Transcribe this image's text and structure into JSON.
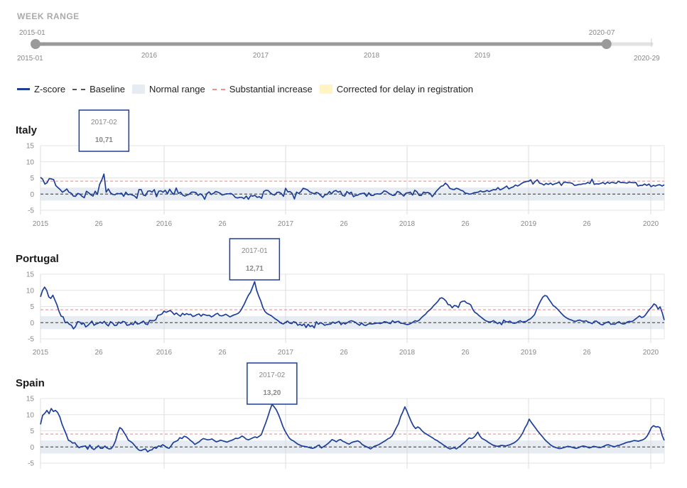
{
  "week_range": {
    "title": "WEEK RANGE",
    "start_label": "2015-01",
    "end_label": "2020-07",
    "min_label": "2015-01",
    "max_label": "2020-29",
    "year_labels": [
      "2016",
      "2017",
      "2018",
      "2019"
    ],
    "selected_start_fraction": 0.0,
    "selected_end_fraction": 0.927
  },
  "legend": {
    "zscore": "Z-score",
    "baseline": "Baseline",
    "normal_range": "Normal range",
    "substantial_increase": "Substantial increase",
    "corrected": "Corrected for delay in registration"
  },
  "colors": {
    "zscore_line": "#1d3f9a",
    "baseline": "#555555",
    "normal_range": "#e6ecf2",
    "substantial_increase": "#f09090",
    "corrected": "#fff4c2",
    "slider_track": "#999999"
  },
  "chart_data": [
    {
      "type": "line",
      "title": "Italy",
      "ylim": [
        -5,
        15
      ],
      "yticks": [
        15,
        10,
        5,
        0,
        -5
      ],
      "xlim": [
        "2015-01",
        "2020-13"
      ],
      "xticks": [
        "2015",
        "26",
        "2016",
        "26",
        "2017",
        "26",
        "2018",
        "26",
        "2019",
        "26",
        "2020"
      ],
      "baseline": 0,
      "normal_range": [
        -2,
        2
      ],
      "substantial_increase_threshold": 4,
      "tooltip": {
        "week": "2017-02",
        "value": "10,71"
      },
      "series": [
        {
          "values": [
            5.2,
            4.6,
            3.1,
            3.5,
            4.8,
            4.7,
            4.5,
            2.6,
            2.0,
            1.4,
            0.6,
            1.0,
            1.6,
            0.6,
            0.3,
            -0.6,
            -0.7,
            0.2,
            0.0,
            -0.7,
            -1.1,
            0.9,
            0.4,
            -0.2,
            -0.6,
            0.9,
            -0.1,
            3.0,
            4.4,
            6.2,
            0.6,
            1.6,
            0.4,
            -0.1,
            -0.2,
            0.2,
            0.1,
            0.3,
            -0.7,
            0.6,
            -0.2,
            0.0,
            -0.3,
            -0.6,
            -1.3,
            1.4,
            1.4,
            -0.3,
            -0.5,
            0.9,
            1.0,
            0.6,
            1.4,
            -0.8,
            0.9,
            1.0,
            0.6,
            1.2,
            0.1,
            1.5,
            0.5,
            -0.1,
            1.9,
            0.2,
            0.6,
            -0.3,
            -0.6,
            -0.3,
            0.0,
            0.6,
            0.6,
            0.5,
            -0.4,
            0.1,
            -0.4,
            -1.6,
            0.1,
            0.7,
            -0.1,
            0.2,
            0.8,
            0.6,
            0.3,
            -0.3,
            -0.1,
            0.1,
            0.1,
            0.2,
            -0.2,
            -1.0,
            -1.2,
            -1.0,
            -1.0,
            -1.4,
            -0.6,
            -1.6,
            -0.5,
            -0.6,
            -0.4,
            -1.0,
            -0.8,
            -1.3,
            0.8,
            1.2,
            1.1,
            0.4,
            -0.1,
            -0.3,
            0.5,
            0.6,
            0.2,
            -0.7,
            1.8,
            0.7,
            0.8,
            0.2,
            -1.5,
            0.6,
            0.2,
            0.8,
            1.8,
            1.6,
            1.3,
            0.7,
            0.4,
            0.1,
            0.5,
            0.3,
            -0.4,
            -1.0,
            -0.2,
            -0.1,
            0.8,
            0.1,
            0.9,
            1.1,
            0.6,
            0.9,
            -0.4,
            -0.6,
            0.8,
            0.2,
            0.6,
            -0.8,
            -0.4,
            -0.3,
            0.1,
            0.2,
            0.3,
            -0.7,
            0.4,
            -0.4,
            -0.4,
            0.0,
            0.1,
            0.0,
            0.3,
            1.0,
            0.8,
            0.3,
            -0.1,
            -0.4,
            -0.3,
            0.8,
            0.6,
            0.0,
            -0.6,
            0.3,
            0.4,
            0.6,
            -0.3,
            1.2,
            0.7,
            -0.4,
            -0.4,
            0.6,
            0.4,
            0.5,
            0.2,
            -0.8,
            0.1,
            1.0,
            1.7,
            2.4,
            2.6,
            3.4,
            2.8,
            1.8,
            1.5,
            1.4,
            1.8,
            1.6,
            1.2,
            1.0,
            0.3,
            0.2,
            0.0,
            0.1,
            0.4,
            0.5,
            0.6,
            1.0,
            0.7,
            0.8,
            1.1,
            0.8,
            1.1,
            1.4,
            1.3,
            2.0,
            1.3,
            1.6,
            2.0,
            2.5,
            1.6,
            2.0,
            2.2,
            2.8,
            2.5,
            2.9,
            3.4,
            3.7,
            3.9,
            4.0,
            4.4,
            3.1,
            3.9,
            4.4,
            3.4,
            3.2,
            2.8,
            3.3,
            3.0,
            3.4,
            2.9,
            3.2,
            3.4,
            3.7,
            2.7,
            3.6,
            3.7,
            3.5,
            3.5,
            3.3,
            2.7,
            2.8,
            3.0,
            3.0,
            3.2,
            3.2,
            3.6,
            3.3,
            4.6,
            3.0,
            3.2,
            3.1,
            3.3,
            3.6,
            3.1,
            3.7,
            3.3,
            3.7,
            3.5,
            3.3,
            4.0,
            3.6,
            3.6,
            3.5,
            3.4,
            3.7,
            3.6,
            3.5,
            3.6,
            2.5,
            2.7,
            2.7,
            3.1,
            2.7,
            3.1,
            2.3,
            2.7,
            2.5,
            2.8,
            2.9,
            2.5,
            2.9
          ]
        }
      ]
    },
    {
      "type": "line",
      "title": "Portugal",
      "ylim": [
        -5,
        15
      ],
      "yticks": [
        15,
        10,
        5,
        0,
        -5
      ],
      "xlim": [
        "2015-01",
        "2020-13"
      ],
      "xticks": [
        "2015",
        "26",
        "2016",
        "26",
        "2017",
        "26",
        "2018",
        "26",
        "2019",
        "26",
        "2020"
      ],
      "baseline": 0,
      "normal_range": [
        -2,
        2
      ],
      "substantial_increase_threshold": 4,
      "tooltip": {
        "week": "2017-01",
        "value": "12,71"
      },
      "series": [
        {
          "values": [
            8.0,
            10.0,
            11.0,
            10.0,
            8.0,
            7.5,
            8.5,
            7.0,
            5.5,
            3.5,
            2.0,
            1.8,
            0.0,
            0.2,
            -0.5,
            -0.8,
            -1.9,
            -1.2,
            0.3,
            0.2,
            -0.5,
            -0.1,
            -1.3,
            -0.9,
            -0.2,
            0.5,
            -0.8,
            -0.4,
            -0.2,
            0.2,
            -0.2,
            0.4,
            -0.5,
            -1.0,
            0.3,
            -0.1,
            -0.9,
            -0.8,
            0.2,
            -0.2,
            0.4,
            0.2,
            -0.8,
            -0.7,
            -0.3,
            -0.6,
            0.4,
            -0.4,
            -0.3,
            0.1,
            0.5,
            -0.4,
            -0.6,
            0.7,
            0.6,
            0.6,
            0.9,
            2.3,
            2.4,
            2.7,
            3.6,
            3.2,
            3.5,
            3.8,
            3.2,
            2.5,
            3.0,
            2.4,
            2.0,
            2.9,
            2.4,
            2.8,
            2.5,
            2.6,
            1.9,
            2.1,
            2.5,
            2.7,
            2.0,
            2.6,
            2.4,
            2.2,
            2.3,
            1.8,
            2.1,
            2.6,
            2.9,
            2.2,
            2.1,
            2.3,
            2.6,
            2.2,
            1.8,
            2.1,
            2.4,
            2.6,
            2.9,
            3.5,
            4.6,
            5.8,
            7.2,
            8.5,
            9.4,
            11.0,
            12.7,
            10.0,
            8.2,
            6.7,
            4.7,
            3.5,
            2.9,
            2.5,
            2.2,
            1.7,
            1.2,
            0.8,
            0.3,
            -0.2,
            -0.4,
            0.1,
            0.5,
            -0.1,
            -0.3,
            0.3,
            0.1,
            -0.8,
            -0.5,
            -0.9,
            -0.4,
            -1.5,
            -0.5,
            -1.2,
            -0.9,
            -1.6,
            0.3,
            -0.5,
            0.0,
            -0.3,
            -0.8,
            -0.6,
            -0.5,
            -0.4,
            0.2,
            -0.2,
            0.1,
            0.4,
            -0.6,
            0.0,
            -0.4,
            0.0,
            0.4,
            0.6,
            0.4,
            0.1,
            -0.4,
            -0.8,
            -0.1,
            -0.7,
            -0.9,
            -0.5,
            -0.3,
            -0.4,
            -0.3,
            -0.2,
            -0.1,
            -0.3,
            -0.1,
            0.3,
            0.2,
            -0.1,
            -0.3,
            0.6,
            0.1,
            0.3,
            0.4,
            -0.2,
            -0.2,
            -0.4,
            -0.6,
            -0.5,
            -0.2,
            0.2,
            0.6,
            0.4,
            0.8,
            1.5,
            2.1,
            2.6,
            3.4,
            3.9,
            4.5,
            5.3,
            5.9,
            6.6,
            7.5,
            7.7,
            7.3,
            6.7,
            5.6,
            5.5,
            4.6,
            5.3,
            5.2,
            4.7,
            6.3,
            6.6,
            6.7,
            6.1,
            5.9,
            5.5,
            4.1,
            3.2,
            2.8,
            2.2,
            1.7,
            1.2,
            0.7,
            0.4,
            0.2,
            0.3,
            0.6,
            0.2,
            -0.3,
            0.1,
            -0.6,
            0.8,
            0.3,
            0.2,
            0.5,
            0.0,
            -0.2,
            -0.1,
            0.3,
            0.6,
            0.2,
            0.3,
            0.4,
            0.9,
            1.2,
            1.8,
            2.5,
            4.1,
            5.5,
            6.8,
            7.9,
            8.4,
            8.2,
            7.2,
            6.3,
            5.3,
            4.9,
            4.3,
            3.6,
            2.9,
            2.2,
            1.7,
            1.3,
            1.0,
            0.8,
            0.5,
            0.4,
            0.7,
            0.8,
            0.5,
            0.4,
            0.6,
            0.2,
            0.0,
            -0.3,
            0.4,
            0.5,
            0.0,
            -0.5,
            -0.7,
            -0.2,
            0.1,
            0.3,
            -0.5,
            -0.4,
            -0.5,
            0.0,
            0.3,
            -0.2,
            -0.4,
            -0.3,
            0.2,
            0.4,
            0.3,
            0.6,
            1.1,
            1.6,
            2.1,
            1.6,
            1.8,
            2.5,
            3.4,
            4.2,
            4.9,
            5.8,
            5.4,
            4.2,
            4.9,
            3.1,
            0.8
          ]
        }
      ]
    },
    {
      "type": "line",
      "title": "Spain",
      "ylim": [
        -5,
        15
      ],
      "yticks": [
        15,
        10,
        5,
        0,
        -5
      ],
      "xlim": [
        "2015-01",
        "2020-13"
      ],
      "baseline": 0,
      "normal_range": [
        -2,
        2
      ],
      "substantial_increase_threshold": 4,
      "tooltip": {
        "week": "2017-02",
        "value": "13,20"
      },
      "series": [
        {
          "values": [
            7.0,
            9.8,
            10.4,
            11.3,
            10.3,
            11.9,
            11.0,
            11.3,
            10.7,
            9.3,
            7.1,
            5.5,
            3.9,
            2.1,
            1.8,
            1.2,
            1.3,
            0.4,
            -0.2,
            0.1,
            0.2,
            0.3,
            -0.7,
            0.6,
            -0.4,
            -0.8,
            -0.2,
            0.4,
            -0.4,
            -0.4,
            0.3,
            -0.3,
            -0.6,
            -0.5,
            0.4,
            1.9,
            4.3,
            6.0,
            5.5,
            4.4,
            3.4,
            2.1,
            1.7,
            1.2,
            0.4,
            -0.4,
            -1.0,
            -1.1,
            -0.8,
            -0.6,
            -1.5,
            -1.0,
            -0.9,
            -0.1,
            -0.4,
            0.3,
            0.2,
            0.7,
            0.3,
            -0.2,
            -0.4,
            0.4,
            1.4,
            1.7,
            2.0,
            2.9,
            2.6,
            3.3,
            3.1,
            2.6,
            2.0,
            1.5,
            0.8,
            1.2,
            1.6,
            2.2,
            2.6,
            2.4,
            2.2,
            2.3,
            2.5,
            2.0,
            1.6,
            1.8,
            2.1,
            1.9,
            1.7,
            1.5,
            1.8,
            2.0,
            2.3,
            2.7,
            2.6,
            2.9,
            3.4,
            3.0,
            2.4,
            2.2,
            2.5,
            2.8,
            3.1,
            2.9,
            3.3,
            3.8,
            5.6,
            7.3,
            9.2,
            11.3,
            13.2,
            12.4,
            11.5,
            10.1,
            8.4,
            6.5,
            5.0,
            3.9,
            2.8,
            2.2,
            1.9,
            1.4,
            0.9,
            0.6,
            0.3,
            0.2,
            0.1,
            -0.1,
            -0.3,
            -0.4,
            -0.2,
            0.3,
            0.6,
            -0.3,
            0.1,
            0.5,
            1.0,
            1.6,
            2.3,
            2.0,
            1.6,
            2.1,
            2.3,
            1.8,
            1.5,
            1.1,
            0.9,
            1.3,
            1.6,
            1.7,
            1.9,
            1.5,
            0.8,
            0.4,
            0.1,
            -0.2,
            -0.6,
            -0.1,
            0.3,
            0.5,
            0.8,
            1.2,
            1.6,
            2.0,
            2.5,
            2.8,
            3.4,
            4.6,
            6.0,
            7.2,
            9.4,
            10.8,
            12.4,
            11.0,
            9.3,
            7.8,
            6.5,
            5.7,
            6.2,
            5.8,
            5.0,
            4.4,
            4.0,
            3.6,
            3.2,
            2.8,
            2.3,
            2.0,
            1.5,
            1.1,
            0.6,
            0.2,
            -0.3,
            -0.6,
            -0.4,
            -0.2,
            -0.6,
            -0.1,
            0.4,
            1.0,
            1.5,
            2.2,
            2.8,
            2.6,
            2.9,
            3.6,
            4.6,
            3.4,
            2.6,
            2.3,
            1.9,
            1.4,
            1.0,
            0.6,
            0.4,
            0.2,
            0.3,
            0.5,
            0.4,
            0.3,
            0.5,
            0.7,
            1.0,
            1.3,
            1.8,
            2.4,
            3.3,
            4.4,
            5.9,
            7.0,
            8.6,
            7.6,
            6.7,
            5.8,
            4.9,
            4.1,
            3.3,
            2.5,
            1.8,
            1.2,
            0.6,
            0.2,
            -0.1,
            -0.3,
            -0.5,
            -0.4,
            -0.2,
            0.0,
            0.2,
            0.1,
            -0.1,
            -0.3,
            -0.4,
            -0.2,
            0.1,
            0.3,
            0.2,
            0.0,
            -0.3,
            -0.1,
            0.2,
            0.1,
            -0.1,
            -0.2,
            0.0,
            0.3,
            0.6,
            0.7,
            0.4,
            0.2,
            0.1,
            0.4,
            0.5,
            0.8,
            1.0,
            1.3,
            1.5,
            1.6,
            1.8,
            2.0,
            1.9,
            1.8,
            2.0,
            2.2,
            2.6,
            3.4,
            4.6,
            6.0,
            6.6,
            6.2,
            6.3,
            6.0,
            3.6,
            2.0
          ]
        }
      ]
    }
  ]
}
